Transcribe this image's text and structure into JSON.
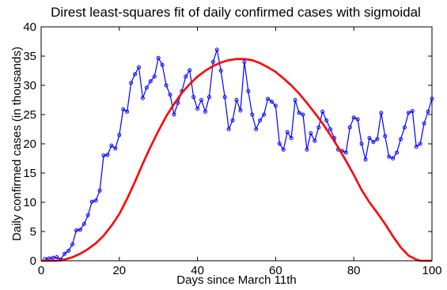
{
  "chart_data": {
    "type": "line",
    "title": "Direst least-squares fit of daily confirmed cases with sigmoidal",
    "xlabel": "Days since March 11th",
    "ylabel": "Daily confirmed cases (in thousands)",
    "xlim": [
      0,
      100
    ],
    "ylim": [
      0,
      40
    ],
    "xticks": [
      0,
      20,
      40,
      60,
      80,
      100
    ],
    "yticks": [
      0,
      5,
      10,
      15,
      20,
      25,
      30,
      35,
      40
    ],
    "grid": false,
    "legend": "none",
    "series": [
      {
        "color": "#0000ff",
        "marker": "circle",
        "x": [
          1,
          2,
          3,
          4,
          5,
          6,
          7,
          8,
          9,
          10,
          11,
          12,
          13,
          14,
          15,
          16,
          17,
          18,
          19,
          20,
          21,
          22,
          23,
          24,
          25,
          26,
          27,
          28,
          29,
          30,
          31,
          32,
          33,
          34,
          35,
          36,
          37,
          38,
          39,
          40,
          41,
          42,
          43,
          44,
          45,
          46,
          47,
          48,
          49,
          50,
          51,
          52,
          53,
          54,
          55,
          56,
          57,
          58,
          59,
          60,
          61,
          62,
          63,
          64,
          65,
          66,
          67,
          68,
          69,
          70,
          71,
          72,
          73,
          74,
          75,
          76,
          77,
          78,
          79,
          80,
          81,
          82,
          83,
          84,
          85,
          86,
          87,
          88,
          89,
          90,
          91,
          92,
          93,
          94,
          95,
          96,
          97,
          98,
          99,
          100
        ],
        "y": [
          0.3,
          0.4,
          0.5,
          0.6,
          0.2,
          1.2,
          1.7,
          2.8,
          5.2,
          5.3,
          6.3,
          7.8,
          10.1,
          10.3,
          12.0,
          18.0,
          18.1,
          19.7,
          19.2,
          21.5,
          25.9,
          25.5,
          30.4,
          31.9,
          33.1,
          27.8,
          29.6,
          30.7,
          31.5,
          34.7,
          33.5,
          30.0,
          28.4,
          25.0,
          27.0,
          29.0,
          31.5,
          32.6,
          28.0,
          26.0,
          27.5,
          25.5,
          28.0,
          34.0,
          36.1,
          32.5,
          28.0,
          22.5,
          24.0,
          27.5,
          25.7,
          34.0,
          29.0,
          25.0,
          22.5,
          24.0,
          25.0,
          27.7,
          27.2,
          26.5,
          20.0,
          19.0,
          22.0,
          21.0,
          27.5,
          25.3,
          25.0,
          19.0,
          21.8,
          20.5,
          22.8,
          25.5,
          24.0,
          22.5,
          21.0,
          19.0,
          18.8,
          18.5,
          22.8,
          24.5,
          24.2,
          20.0,
          17.3,
          21.0,
          20.3,
          20.8,
          25.3,
          21.3,
          17.8,
          17.5,
          18.5,
          20.8,
          22.8,
          25.3,
          25.6,
          19.5,
          20.0,
          23.5,
          25.5,
          27.7
        ]
      },
      {
        "color": "#ff0000",
        "marker": "none",
        "x": [
          0,
          2,
          4,
          6,
          8,
          10,
          12,
          14,
          16,
          18,
          20,
          22,
          24,
          26,
          28,
          30,
          32,
          34,
          36,
          38,
          40,
          42,
          44,
          46,
          48,
          50,
          52,
          54,
          56,
          58,
          60,
          62,
          64,
          66,
          68,
          70,
          72,
          74,
          76,
          78,
          80,
          82,
          84,
          86,
          88,
          90,
          92,
          94,
          96,
          97,
          98,
          100
        ],
        "y": [
          0,
          0,
          0,
          0.2,
          0.6,
          1.2,
          2.0,
          3.0,
          4.3,
          6.0,
          8.0,
          10.6,
          13.5,
          16.6,
          19.5,
          22.2,
          24.7,
          26.8,
          28.7,
          30.2,
          31.5,
          32.5,
          33.3,
          33.9,
          34.3,
          34.5,
          34.5,
          34.3,
          33.8,
          33.1,
          32.3,
          31.2,
          30.0,
          28.6,
          27.0,
          25.3,
          23.5,
          21.5,
          19.4,
          17.1,
          14.7,
          12.1,
          10.0,
          8.2,
          6.3,
          4.2,
          2.3,
          0.9,
          0.2,
          0,
          0,
          0
        ]
      }
    ]
  }
}
